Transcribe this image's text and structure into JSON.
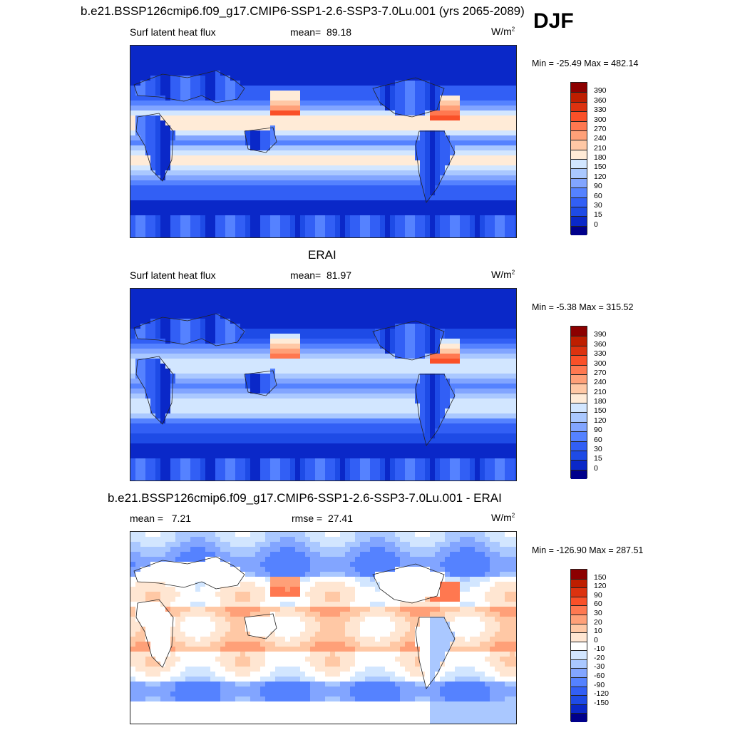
{
  "figure": {
    "main_title": "b.e21.BSSP126cmip6.f09_g17.CMIP6-SSP1-2.6-SSP3-7.0Lu.001 (yrs 2065-2089)",
    "season": "DJF"
  },
  "colors": {
    "abs_scale": [
      "#00008b",
      "#0a28c8",
      "#1e4be6",
      "#325ff5",
      "#5582ff",
      "#82a5ff",
      "#aac8ff",
      "#d2e6ff",
      "#ffebd7",
      "#ffc8a5",
      "#ffa078",
      "#ff7850",
      "#fa5028",
      "#dc320f",
      "#be1e00",
      "#8c0000"
    ],
    "diff_scale": [
      "#00008b",
      "#0a28c8",
      "#1e4be6",
      "#325ff5",
      "#5582ff",
      "#82a5ff",
      "#aac8ff",
      "#d2e6ff",
      "#ffffff",
      "#ffe6d2",
      "#ffc8a5",
      "#ffa078",
      "#ff7850",
      "#fa5028",
      "#dc320f",
      "#be1e00",
      "#8c0000"
    ]
  },
  "chart_data": [
    {
      "type": "heatmap",
      "title": "b.e21.BSSP126cmip6.f09_g17.CMIP6-SSP1-2.6-SSP3-7.0Lu.001 (yrs 2065-2089)",
      "variable": "Surf latent heat flux",
      "mean_label": "mean=",
      "mean": "89.18",
      "units": "W/m",
      "units_exp": "2",
      "minmax": "Min = -25.49 Max = 482.14",
      "colorbar_levels": [
        "390",
        "360",
        "330",
        "300",
        "270",
        "240",
        "210",
        "180",
        "150",
        "120",
        "90",
        "60",
        "30",
        "15",
        "0"
      ]
    },
    {
      "type": "heatmap",
      "title": "ERAI",
      "variable": "Surf latent heat flux",
      "mean_label": "mean=",
      "mean": "81.97",
      "units": "W/m",
      "units_exp": "2",
      "minmax": "Min =  -5.38 Max = 315.52",
      "colorbar_levels": [
        "390",
        "360",
        "330",
        "300",
        "270",
        "240",
        "210",
        "180",
        "150",
        "120",
        "90",
        "60",
        "30",
        "15",
        "0"
      ]
    },
    {
      "type": "heatmap",
      "title": "b.e21.BSSP126cmip6.f09_g17.CMIP6-SSP1-2.6-SSP3-7.0Lu.001 - ERAI",
      "mean_label": "mean =",
      "mean": "7.21",
      "rmse_label": "rmse =",
      "rmse": "27.41",
      "units": "W/m",
      "units_exp": "2",
      "minmax": "Min = -126.90 Max = 287.51",
      "colorbar_levels": [
        "150",
        "120",
        "90",
        "60",
        "30",
        "20",
        "10",
        "0",
        "-10",
        "-20",
        "-30",
        "-60",
        "-90",
        "-120",
        "-150"
      ]
    }
  ]
}
